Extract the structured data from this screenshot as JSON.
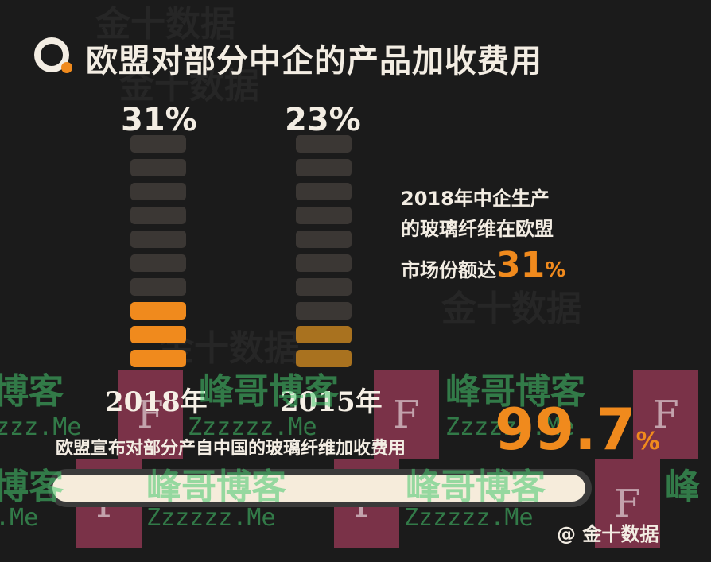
{
  "title": "欧盟对部分中企的产品加收费用",
  "note": {
    "line1": "2018年中企生产",
    "line2": "的玻璃纤维在欧盟",
    "line3_prefix": "市场份额达",
    "line3_value": "31",
    "line3_unit": "%"
  },
  "big_stat": {
    "value": "99.7",
    "unit": "%"
  },
  "subtitle": "欧盟宣布对部分产自中国的玻璃纤维加收费用",
  "progress_fraction": 0.997,
  "credit": "@ 金十数据",
  "watermarks": {
    "brand": "金十数据",
    "blog": "峰哥博客",
    "url": "Zzzzzz.Me",
    "url_partial": "zzz.Me",
    "url_end": ".Me",
    "stamp": "F",
    "blog_partial": "博客",
    "blog_start": "峰"
  },
  "colors": {
    "background": "#1b1b1b",
    "accent": "#f08a1d",
    "muted_accent": "#a9721f",
    "empty_segment": "#3b3734",
    "text": "#f3ede3"
  },
  "chart_data": {
    "type": "bar",
    "title": "欧盟对部分中企的产品加收费用",
    "categories": [
      "2018年",
      "2015年"
    ],
    "values": [
      31,
      23
    ],
    "value_labels": [
      "31%",
      "23%"
    ],
    "ylim": [
      0,
      100
    ],
    "segments": 10
  }
}
